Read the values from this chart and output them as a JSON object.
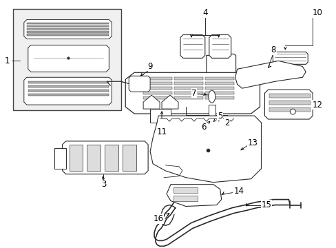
{
  "bg_color": "#ffffff",
  "line_color": "#2a2a2a",
  "fig_width": 4.89,
  "fig_height": 3.6,
  "dpi": 100,
  "font_size": 8.5
}
